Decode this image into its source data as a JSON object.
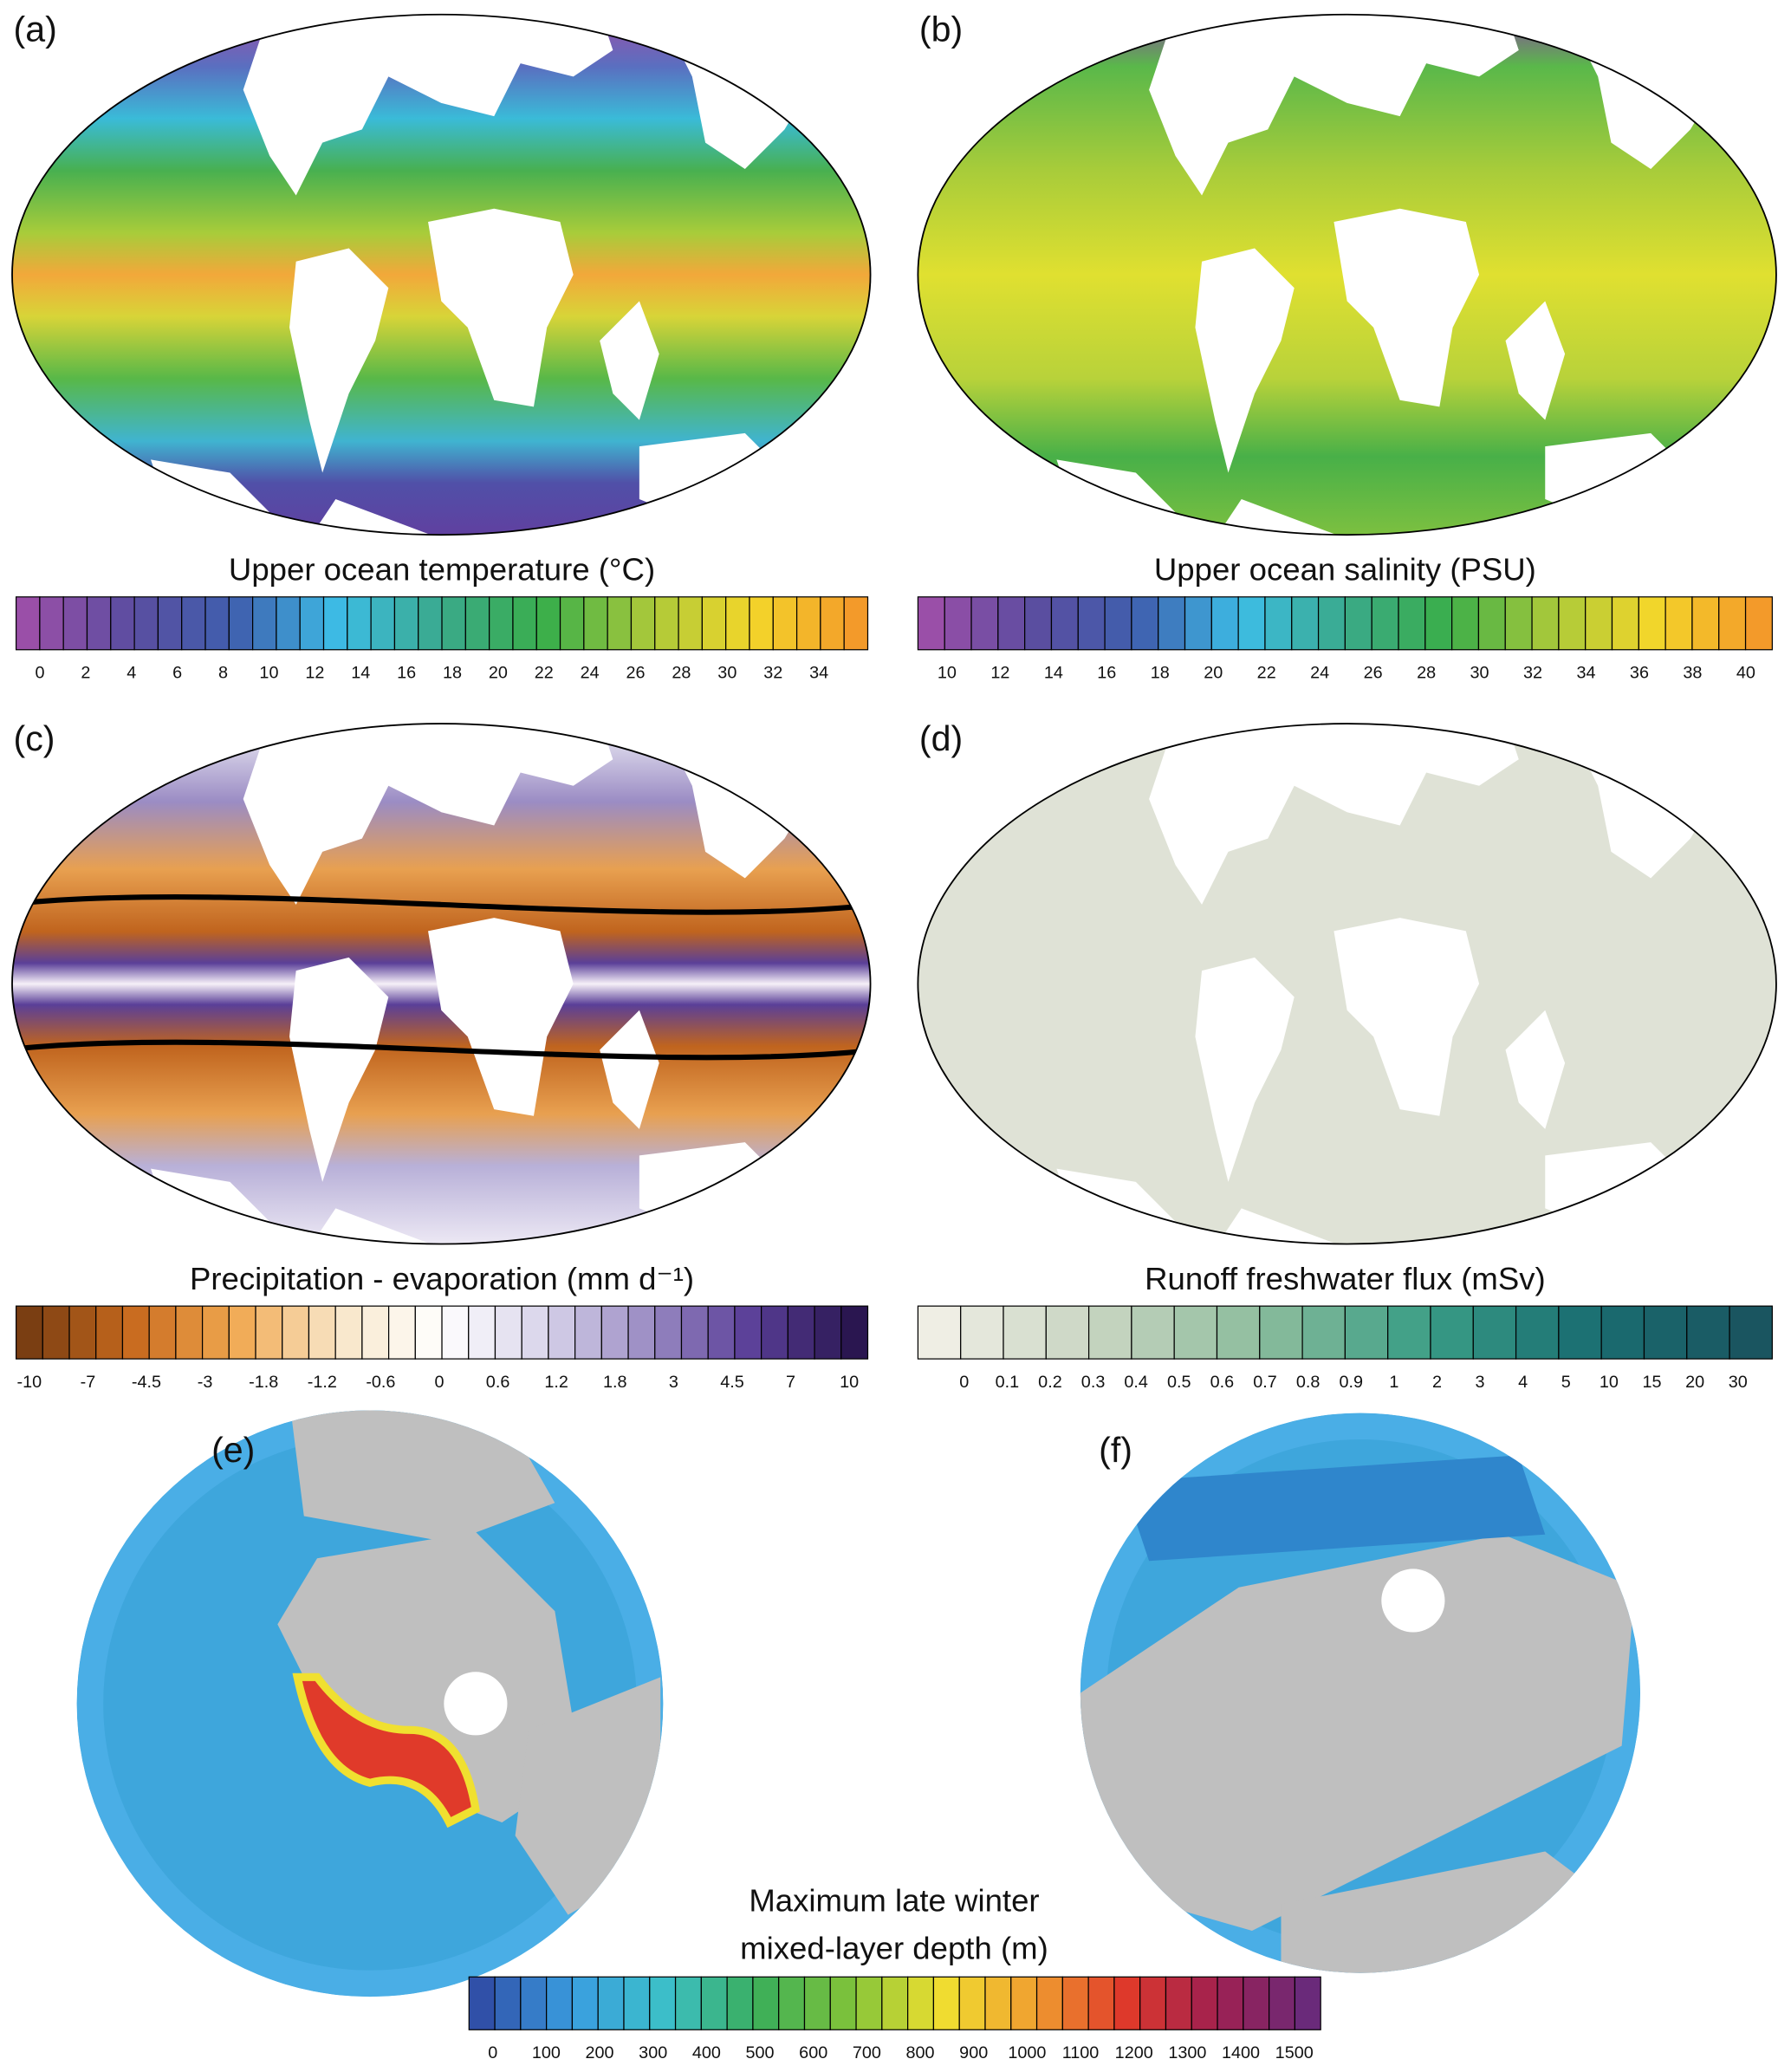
{
  "panels": [
    {
      "label": "(a)",
      "title": "Upper ocean temperature (°C)",
      "ticks": [
        0,
        2,
        4,
        6,
        8,
        10,
        12,
        14,
        16,
        18,
        20,
        22,
        24,
        26,
        28,
        30,
        32,
        34
      ]
    },
    {
      "label": "(b)",
      "title": "Upper ocean salinity (PSU)",
      "ticks": [
        10,
        12,
        14,
        16,
        18,
        20,
        22,
        24,
        26,
        28,
        30,
        32,
        34,
        36,
        38,
        40
      ]
    },
    {
      "label": "(c)",
      "title": "Precipitation - evaporation (mm d⁻¹)",
      "ticks": [
        -10,
        -7,
        -4.5,
        -3,
        -1.8,
        -1.2,
        -0.6,
        0,
        0.6,
        1.2,
        1.8,
        3,
        4.5,
        7,
        10
      ]
    },
    {
      "label": "(d)",
      "title": "Runoff freshwater flux (mSv)",
      "ticks": [
        0,
        0.1,
        0.2,
        0.3,
        0.4,
        0.5,
        0.6,
        0.7,
        0.8,
        0.9,
        1,
        2,
        3,
        4,
        5,
        10,
        15,
        20,
        30
      ]
    }
  ],
  "polar": {
    "labels": [
      "(e)",
      "(f)"
    ],
    "title": [
      "Maximum late winter",
      "mixed-layer depth (m)"
    ],
    "ticks": [
      0,
      100,
      200,
      300,
      400,
      500,
      600,
      700,
      800,
      900,
      1000,
      1100,
      1200,
      1300,
      1400,
      1500
    ]
  }
}
